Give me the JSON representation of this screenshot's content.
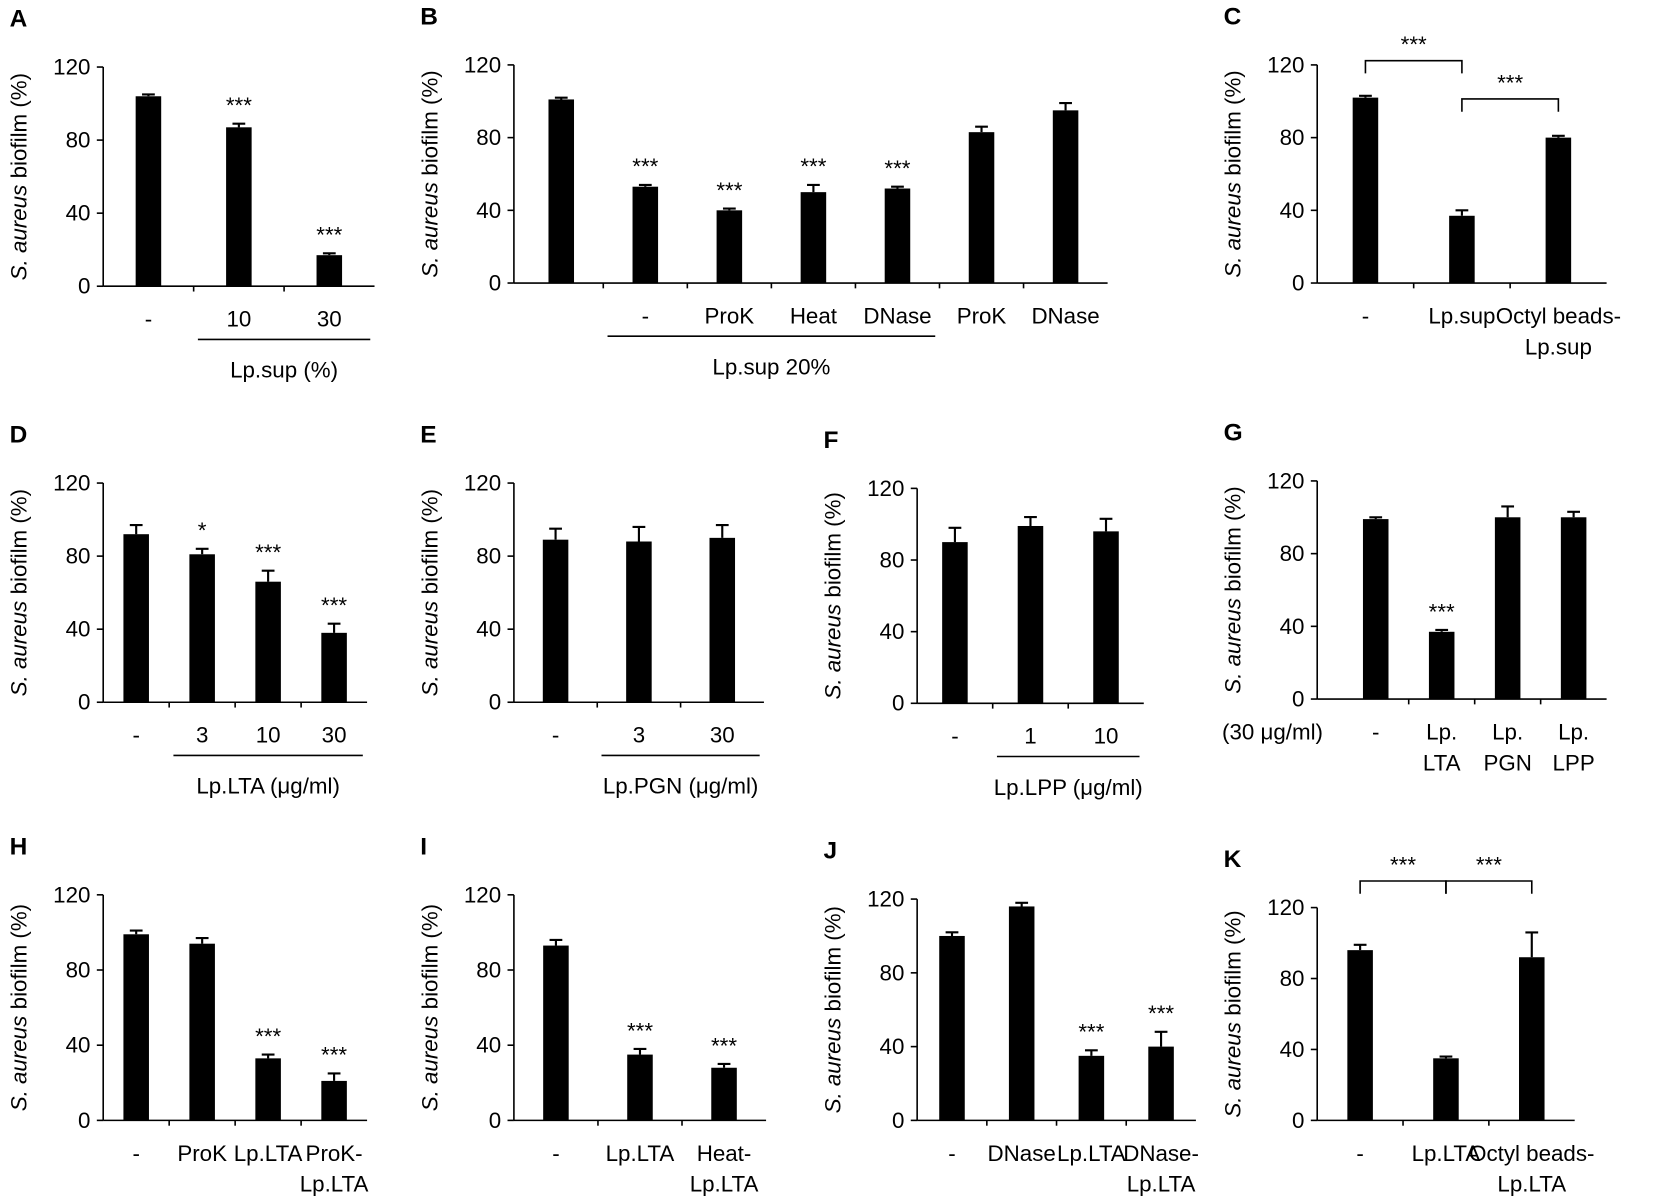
{
  "chart_data": [
    {
      "type": "bar",
      "panel": "A",
      "ylabel": [
        "S. aureus",
        "biofilm (%)"
      ],
      "color": "#000000",
      "ylim": [
        0,
        120
      ],
      "yticks": [
        0,
        40,
        80,
        120
      ],
      "categories": [
        [
          "-"
        ],
        [
          "10"
        ],
        [
          "30"
        ]
      ],
      "values": [
        104,
        87,
        17
      ],
      "errors": [
        1,
        2,
        1
      ],
      "annotations": [
        null,
        "***",
        "***"
      ],
      "group_label": "Lp.sup (%)"
    },
    {
      "type": "bar",
      "panel": "B",
      "ylabel": [
        "S. aureus",
        "biofilm (%)"
      ],
      "color": "#000000",
      "ylim": [
        0,
        120
      ],
      "yticks": [
        0,
        40,
        80,
        120
      ],
      "categories": [
        null,
        [
          "-"
        ],
        [
          "ProK"
        ],
        [
          "Heat"
        ],
        [
          "DNase"
        ],
        [
          "ProK"
        ],
        [
          "DNase"
        ]
      ],
      "values": [
        101,
        53,
        40,
        50,
        52,
        83,
        95
      ],
      "errors": [
        1,
        1,
        1,
        4,
        1,
        3,
        4
      ],
      "annotations": [
        null,
        "***",
        "***",
        "***",
        "***",
        null,
        null
      ],
      "group_label": "Lp.sup 20%"
    },
    {
      "type": "bar",
      "panel": "C",
      "ylabel": [
        "S. aureus",
        "biofilm (%)"
      ],
      "color": "#000000",
      "ylim": [
        0,
        120
      ],
      "yticks": [
        0,
        40,
        80,
        120
      ],
      "categories": [
        [
          "-"
        ],
        [
          "Lp.sup"
        ],
        [
          "Octyl beads-",
          "Lp.sup"
        ]
      ],
      "values": [
        102,
        37,
        80
      ],
      "errors": [
        1,
        3,
        1
      ],
      "annotations": [
        null,
        null,
        null
      ],
      "brackets": [
        "***",
        "***"
      ]
    },
    {
      "type": "bar",
      "panel": "D",
      "ylabel": [
        "S. aureus",
        "biofilm (%)"
      ],
      "color": "#000000",
      "ylim": [
        0,
        120
      ],
      "yticks": [
        0,
        40,
        80,
        120
      ],
      "categories": [
        [
          "-"
        ],
        [
          "3"
        ],
        [
          "10"
        ],
        [
          "30"
        ]
      ],
      "values": [
        92,
        81,
        66,
        38
      ],
      "errors": [
        5,
        3,
        6,
        5
      ],
      "annotations": [
        null,
        "*",
        "***",
        "***"
      ],
      "group_label": "Lp.LTA (μg/ml)"
    },
    {
      "type": "bar",
      "panel": "E",
      "ylabel": [
        "S. aureus",
        "biofilm (%)"
      ],
      "color": "#000000",
      "ylim": [
        0,
        120
      ],
      "yticks": [
        0,
        40,
        80,
        120
      ],
      "categories": [
        [
          "-"
        ],
        [
          "3"
        ],
        [
          "30"
        ]
      ],
      "values": [
        89,
        88,
        90
      ],
      "errors": [
        6,
        8,
        7
      ],
      "annotations": [
        null,
        null,
        null
      ],
      "group_label": "Lp.PGN (μg/ml)"
    },
    {
      "type": "bar",
      "panel": "F",
      "ylabel": [
        "S. aureus",
        "biofilm (%)"
      ],
      "color": "#000000",
      "ylim": [
        0,
        120
      ],
      "yticks": [
        0,
        40,
        80,
        120
      ],
      "categories": [
        [
          "-"
        ],
        [
          "1"
        ],
        [
          "10"
        ]
      ],
      "values": [
        90,
        99,
        96
      ],
      "errors": [
        8,
        5,
        7
      ],
      "annotations": [
        null,
        null,
        null
      ],
      "group_label": "Lp.LPP (μg/ml)"
    },
    {
      "type": "bar",
      "panel": "G",
      "ylabel": [
        "S. aureus",
        "biofilm (%)"
      ],
      "color": "#000000",
      "ylim": [
        0,
        120
      ],
      "yticks": [
        0,
        40,
        80,
        120
      ],
      "categories": [
        [
          "-"
        ],
        [
          "Lp.",
          "LTA"
        ],
        [
          "Lp.",
          "PGN"
        ],
        [
          "Lp.",
          "LPP"
        ]
      ],
      "values": [
        99,
        37,
        100,
        100
      ],
      "errors": [
        1,
        1,
        6,
        3
      ],
      "annotations": [
        null,
        "***",
        null,
        null
      ],
      "side_label": "(30 μg/ml)"
    },
    {
      "type": "bar",
      "panel": "H",
      "ylabel": [
        "S. aureus",
        "biofilm (%)"
      ],
      "color": "#000000",
      "ylim": [
        0,
        120
      ],
      "yticks": [
        0,
        40,
        80,
        120
      ],
      "categories": [
        [
          "-"
        ],
        [
          "ProK"
        ],
        [
          "Lp.LTA"
        ],
        [
          "ProK-",
          "Lp.LTA"
        ]
      ],
      "values": [
        99,
        94,
        33,
        21
      ],
      "errors": [
        2,
        3,
        2,
        4
      ],
      "annotations": [
        null,
        null,
        "***",
        "***"
      ]
    },
    {
      "type": "bar",
      "panel": "I",
      "ylabel": [
        "S. aureus",
        "biofilm (%)"
      ],
      "color": "#000000",
      "ylim": [
        0,
        120
      ],
      "yticks": [
        0,
        40,
        80,
        120
      ],
      "categories": [
        [
          "-"
        ],
        [
          "Lp.LTA"
        ],
        [
          "Heat-",
          "Lp.LTA"
        ]
      ],
      "values": [
        93,
        35,
        28
      ],
      "errors": [
        3,
        3,
        2
      ],
      "annotations": [
        null,
        "***",
        "***"
      ]
    },
    {
      "type": "bar",
      "panel": "J",
      "ylabel": [
        "S. aureus",
        "biofilm (%)"
      ],
      "color": "#000000",
      "ylim": [
        0,
        120
      ],
      "yticks": [
        0,
        40,
        80,
        120
      ],
      "categories": [
        [
          "-"
        ],
        [
          "DNase"
        ],
        [
          "Lp.LTA"
        ],
        [
          "DNase-",
          "Lp.LTA"
        ]
      ],
      "values": [
        100,
        116,
        35,
        40
      ],
      "errors": [
        2,
        2,
        3,
        8
      ],
      "annotations": [
        null,
        null,
        "***",
        "***"
      ]
    },
    {
      "type": "bar",
      "panel": "K",
      "ylabel": [
        "S. aureus",
        "biofilm (%)"
      ],
      "color": "#000000",
      "ylim": [
        0,
        120
      ],
      "yticks": [
        0,
        40,
        80,
        120
      ],
      "categories": [
        [
          "-"
        ],
        [
          "Lp.LTA"
        ],
        [
          "Octyl beads-",
          "Lp.LTA"
        ]
      ],
      "values": [
        96,
        35,
        92
      ],
      "errors": [
        3,
        1,
        14
      ],
      "annotations": [
        null,
        null,
        null
      ],
      "brackets": [
        "***",
        "***"
      ]
    }
  ]
}
